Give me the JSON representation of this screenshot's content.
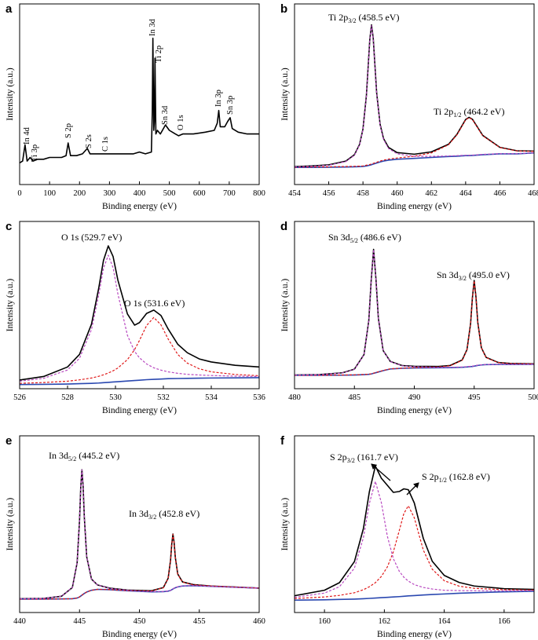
{
  "chart_data": [
    {
      "type": "line",
      "label": "a",
      "xlabel": "Binding energy (eV)",
      "ylabel": "Intensity (a.u.)",
      "xlim": [
        0,
        800
      ],
      "xticks": [
        0,
        100,
        200,
        300,
        400,
        500,
        600,
        700,
        800
      ],
      "ylim": [
        0,
        100
      ],
      "x": [
        0,
        10,
        18,
        25,
        35,
        45,
        60,
        80,
        100,
        120,
        140,
        155,
        162,
        170,
        190,
        210,
        226,
        235,
        260,
        285,
        300,
        340,
        380,
        400,
        420,
        440,
        443,
        445,
        448,
        450,
        452,
        455,
        460,
        470,
        487,
        500,
        520,
        531,
        545,
        580,
        620,
        650,
        660,
        665,
        670,
        685,
        695,
        703,
        710,
        730,
        760,
        800
      ],
      "series": [
        {
          "color": "#000000",
          "values": [
            12,
            13,
            22,
            13,
            15,
            13,
            14,
            14,
            15,
            15,
            15,
            16,
            23,
            16,
            16,
            17,
            20,
            17,
            17,
            17,
            17,
            17,
            17,
            18,
            17,
            18,
            40,
            81,
            30,
            35,
            70,
            28,
            30,
            28,
            33,
            30,
            28,
            27,
            28,
            28,
            29,
            30,
            34,
            41,
            32,
            32,
            35,
            37,
            31,
            29,
            28,
            28
          ]
        }
      ],
      "annotations": [
        "In 4d",
        "Ti 3p",
        "S 2p",
        "S 2s",
        "C 1s",
        "In 3d",
        "Ti 2p",
        "Sn 3d",
        "O 1s",
        "In 3p",
        "Sn 3p"
      ]
    },
    {
      "type": "line",
      "label": "b",
      "xlabel": "Binding energy (eV)",
      "ylabel": "Intensity (a.u.)",
      "xlim": [
        454,
        468
      ],
      "xticks": [
        454,
        456,
        458,
        460,
        462,
        464,
        466,
        468
      ],
      "ylim": [
        0,
        100
      ],
      "x": [
        454,
        455,
        456,
        457,
        457.5,
        457.8,
        458,
        458.2,
        458.4,
        458.5,
        458.6,
        458.8,
        459,
        459.2,
        459.5,
        460,
        461,
        462,
        463,
        463.5,
        464,
        464.2,
        464.4,
        465,
        466,
        467,
        468
      ],
      "series": [
        {
          "color": "#000000",
          "values": [
            9.9,
            10.3,
            10.9,
            13,
            16.5,
            22.2,
            30.7,
            49.2,
            80.4,
            88.4,
            81,
            50.8,
            33.4,
            25.5,
            20.5,
            17.7,
            16.8,
            18.1,
            22.3,
            27.9,
            36,
            37.2,
            36.1,
            27.2,
            20.6,
            18.7,
            18.5
          ]
        },
        {
          "color": "#2a48b0",
          "values": [
            9.5,
            9.5,
            9.6,
            9.7,
            9.8,
            9.9,
            10,
            10.3,
            10.7,
            11,
            11.3,
            11.9,
            12.5,
            13,
            13.5,
            14,
            14.5,
            15,
            15.5,
            15.7,
            16,
            16,
            16.1,
            16.5,
            17,
            17,
            17.5
          ]
        },
        {
          "color": "#e01818",
          "dash": true,
          "values": [
            9.6,
            9.7,
            9.8,
            10,
            10.1,
            10.2,
            10.3,
            10.7,
            11.1,
            11.4,
            11.7,
            12.3,
            13,
            13.5,
            14.1,
            14.7,
            15.7,
            17.5,
            22,
            27.6,
            35.8,
            37,
            35.9,
            27,
            20.5,
            18.6,
            18.4
          ]
        },
        {
          "color": "#b848c0",
          "dash": true,
          "values": [
            9.8,
            10.1,
            10.7,
            12.7,
            16.2,
            21.9,
            30.4,
            48.8,
            80,
            88,
            80.6,
            50.4,
            32.9,
            25,
            19.9,
            17,
            15.6,
            15.6,
            15.8,
            16,
            16.2,
            16.2,
            16.3,
            16.7,
            17.1,
            17.1,
            17.6
          ]
        }
      ],
      "annotations": [
        {
          "text": "Ti 2p",
          "sub": "3/2",
          "rest": " (458.5 eV)"
        },
        {
          "text": "Ti 2p",
          "sub": "1/2",
          "rest": " (464.2 eV)"
        }
      ]
    },
    {
      "type": "line",
      "label": "c",
      "xlabel": "Binding energy (eV)",
      "ylabel": "Intensity (a.u.)",
      "xlim": [
        526,
        536
      ],
      "xticks": [
        526,
        528,
        530,
        532,
        534,
        536
      ],
      "ylim": [
        0,
        100
      ],
      "x": [
        526,
        527,
        528,
        528.5,
        529,
        529.3,
        529.5,
        529.7,
        529.9,
        530.1,
        530.5,
        530.8,
        531,
        531.3,
        531.6,
        531.9,
        532.2,
        532.6,
        533,
        533.5,
        534,
        535,
        536
      ],
      "series": [
        {
          "color": "#000000",
          "values": [
            5.2,
            7.3,
            13,
            20.5,
            38.6,
            60,
            76.7,
            85.4,
            79.1,
            65,
            44.7,
            38,
            39.5,
            45,
            47,
            43.8,
            35.7,
            26.6,
            21.5,
            17.8,
            16,
            14,
            13
          ]
        },
        {
          "color": "#2a48b0",
          "values": [
            2.5,
            2.6,
            2.8,
            3,
            3.2,
            3.4,
            3.6,
            3.8,
            4,
            4.2,
            4.6,
            4.9,
            5.1,
            5.4,
            5.6,
            5.8,
            6,
            6.1,
            6.2,
            6.3,
            6.4,
            6.5,
            6.6
          ]
        },
        {
          "color": "#e01818",
          "dash": true,
          "values": [
            3.2,
            3.7,
            4.5,
            5.3,
            6.4,
            7.4,
            8.3,
            9.4,
            10.7,
            12.4,
            17.4,
            23.4,
            28.8,
            37.8,
            42.6,
            38.2,
            29.7,
            20.5,
            15.3,
            11.9,
            10.1,
            8.5,
            7.8
          ]
        },
        {
          "color": "#b848c0",
          "dash": true,
          "values": [
            4.5,
            6.2,
            11.2,
            18.2,
            35.4,
            56,
            72,
            79.8,
            72.4,
            56.8,
            31.9,
            22.3,
            18.5,
            14.8,
            12.5,
            11.1,
            10.1,
            9.2,
            8.6,
            8.2,
            7.9,
            7.5,
            7.3
          ]
        }
      ],
      "annotations": [
        {
          "text": "O 1s (529.7 eV)"
        },
        {
          "text": "O 1s (531.6 eV)"
        }
      ]
    },
    {
      "type": "line",
      "label": "d",
      "xlabel": "Binding energy (eV)",
      "ylabel": "Intensity (a.u.)",
      "xlim": [
        480,
        500
      ],
      "xticks": [
        480,
        485,
        490,
        495,
        500
      ],
      "ylim": [
        0,
        100
      ],
      "x": [
        480,
        482,
        484,
        485,
        485.8,
        486.2,
        486.4,
        486.6,
        486.8,
        487,
        487.4,
        488,
        489,
        490,
        492,
        493,
        494,
        494.4,
        494.7,
        494.85,
        495,
        495.15,
        495.3,
        495.6,
        496,
        497,
        498,
        500
      ],
      "series": [
        {
          "color": "#000000",
          "values": [
            8.2,
            8.4,
            9.5,
            11.7,
            20.4,
            40.7,
            64.6,
            83.3,
            65.4,
            42.1,
            22.8,
            16.3,
            13.8,
            13.4,
            13.3,
            13.9,
            17.2,
            23.4,
            38.9,
            54.3,
            64.7,
            54.7,
            39.6,
            24.5,
            18.7,
            15.7,
            15.1,
            14.9
          ]
        },
        {
          "color": "#2a48b0",
          "values": [
            8,
            8,
            8.1,
            8.2,
            8.4,
            8.6,
            8.8,
            9.2,
            9.6,
            10,
            10.8,
            11.8,
            12.2,
            12.4,
            12.5,
            12.6,
            12.8,
            13,
            13.2,
            13.3,
            13.5,
            13.7,
            13.9,
            14.2,
            14.4,
            14.5,
            14.5,
            14.6
          ]
        },
        {
          "color": "#e01818",
          "dash": true,
          "values": [
            8,
            8,
            8.2,
            8.3,
            8.5,
            8.7,
            8.9,
            9.3,
            9.7,
            10.1,
            10.9,
            11.9,
            12.3,
            12.6,
            13,
            13.7,
            17,
            23.2,
            38.7,
            54.1,
            64.5,
            54.5,
            39.4,
            24.4,
            18.6,
            15.6,
            15,
            14.8
          ]
        },
        {
          "color": "#b848c0",
          "dash": true,
          "values": [
            8.2,
            8.4,
            9.4,
            11.6,
            20.3,
            40.6,
            64.5,
            83.2,
            65.3,
            42,
            22.7,
            16.2,
            13.7,
            13.2,
            12.8,
            12.8,
            13,
            13.2,
            13.4,
            13.5,
            13.7,
            13.9,
            14.1,
            14.3,
            14.5,
            14.6,
            14.6,
            14.7
          ]
        }
      ],
      "annotations": [
        {
          "text": "Sn 3d",
          "sub": "5/2",
          "rest": " (486.6 eV)"
        },
        {
          "text": "Sn 3d",
          "sub": "3/2",
          "rest": " (495.0 eV)"
        }
      ]
    },
    {
      "type": "line",
      "label": "e",
      "xlabel": "Binding energy (eV)",
      "ylabel": "Intensity (a.u.)",
      "xlim": [
        440,
        460
      ],
      "xticks": [
        440,
        445,
        450,
        455,
        460
      ],
      "ylim": [
        0,
        100
      ],
      "x": [
        440,
        442,
        443.5,
        444.4,
        444.8,
        445,
        445.1,
        445.2,
        445.3,
        445.4,
        445.6,
        446,
        446.5,
        447.5,
        449,
        451,
        452,
        452.4,
        452.6,
        452.7,
        452.8,
        452.9,
        453,
        453.2,
        453.6,
        454.5,
        456,
        458,
        460
      ],
      "series": [
        {
          "color": "#000000",
          "values": [
            7.8,
            8,
            9.2,
            14.1,
            28.1,
            52.1,
            70.5,
            80.8,
            71.5,
            54.1,
            31.5,
            18.9,
            15.6,
            13.8,
            12.7,
            12.3,
            14.1,
            19.4,
            29.6,
            38.7,
            44.4,
            39.5,
            31.1,
            21.8,
            17.3,
            15.8,
            15,
            14.4,
            13.8
          ]
        },
        {
          "color": "#2a48b0",
          "values": [
            7.6,
            7.6,
            7.7,
            7.8,
            8.2,
            8.8,
            9.3,
            9.8,
            10.3,
            10.8,
            11.6,
            12.6,
            13.1,
            12.9,
            12.3,
            11.7,
            11.8,
            12.1,
            12.5,
            12.9,
            13.3,
            13.7,
            14,
            14.5,
            15,
            15.2,
            14.8,
            14.3,
            13.8
          ]
        },
        {
          "color": "#e01818",
          "dash": true,
          "values": [
            7.6,
            7.6,
            7.7,
            7.8,
            8.2,
            8.8,
            9.3,
            9.8,
            10.3,
            10.8,
            11.6,
            12.6,
            13.1,
            13,
            12.4,
            12.2,
            14,
            19.3,
            29.5,
            38.6,
            44.3,
            39.4,
            31,
            21.7,
            17.2,
            15.7,
            15,
            14.4,
            13.8
          ]
        },
        {
          "color": "#b848c0",
          "dash": true,
          "values": [
            7.8,
            8,
            9.2,
            14.1,
            28.1,
            52.1,
            70.5,
            80.8,
            71.5,
            54.1,
            31.5,
            18.9,
            15.6,
            13.7,
            12.6,
            11.8,
            11.9,
            12.2,
            12.6,
            13,
            13.4,
            13.8,
            14.1,
            14.6,
            15.1,
            15.3,
            14.8,
            14.3,
            13.8
          ]
        }
      ],
      "annotations": [
        {
          "text": "In 3d",
          "sub": "5/2",
          "rest": " (445.2 eV)"
        },
        {
          "text": "In 3d",
          "sub": "3/2",
          "rest": " (452.8 eV)"
        }
      ]
    },
    {
      "type": "line",
      "label": "f",
      "xlabel": "Binding energy (eV)",
      "ylabel": "Intensity (a.u.)",
      "xlim": [
        159,
        167
      ],
      "xticks": [
        160,
        162,
        164,
        166
      ],
      "ylim": [
        0,
        100
      ],
      "x": [
        159,
        160,
        160.5,
        161,
        161.3,
        161.5,
        161.7,
        161.9,
        162.1,
        162.3,
        162.5,
        162.65,
        162.8,
        163,
        163.3,
        163.6,
        164,
        164.5,
        165,
        166,
        167
      ],
      "series": [
        {
          "color": "#000000",
          "values": [
            9.5,
            12.6,
            16.9,
            28.8,
            47.5,
            68.4,
            82.9,
            76,
            72,
            68,
            68.5,
            70,
            69.5,
            62,
            42,
            29,
            21,
            17,
            15,
            13.5,
            13.1
          ]
        },
        {
          "color": "#2a48b0",
          "values": [
            7,
            7.2,
            7.4,
            7.6,
            7.8,
            8,
            8.2,
            8.4,
            8.6,
            8.8,
            9,
            9.2,
            9.4,
            9.6,
            9.9,
            10.2,
            10.5,
            10.9,
            11.2,
            11.7,
            12
          ]
        },
        {
          "color": "#e01818",
          "dash": true,
          "values": [
            7.9,
            8.8,
            9.7,
            11.2,
            12.9,
            14.6,
            16.9,
            20.4,
            25.8,
            34.3,
            46.5,
            56,
            60.4,
            53.6,
            35.4,
            24.5,
            18,
            14.9,
            13.7,
            12.9,
            12.7
          ]
        },
        {
          "color": "#b848c0",
          "dash": true,
          "values": [
            8.6,
            11,
            14.6,
            25.1,
            42.4,
            61.8,
            74.2,
            62.2,
            43.2,
            30.5,
            23.3,
            20,
            17.8,
            15.8,
            14.2,
            13.3,
            12.6,
            12.4,
            12.3,
            12.3,
            12.4
          ]
        }
      ],
      "annotations": [
        {
          "text": "S 2p",
          "sub": "3/2",
          "rest": " (161.7 eV)"
        },
        {
          "text": "S 2p",
          "sub": "1/2",
          "rest": " (162.8 eV)"
        }
      ]
    }
  ]
}
